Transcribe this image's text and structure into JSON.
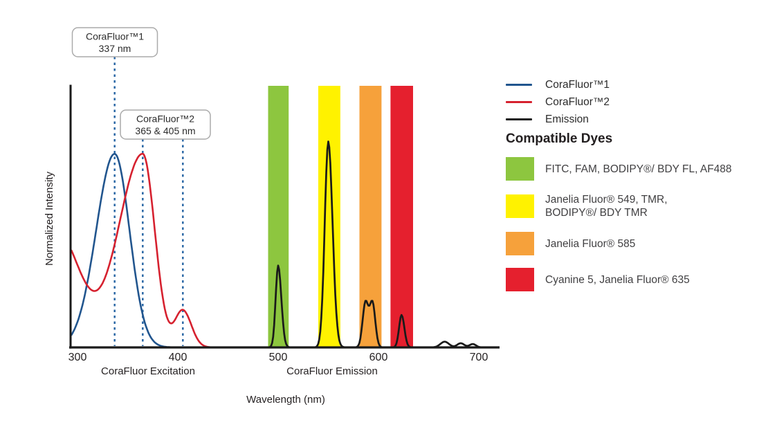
{
  "chart": {
    "y_axis_label": "Normalized Intensity",
    "x_axis_label": "Wavelength (nm)",
    "region_labels": {
      "excitation": "CoraFluor Excitation",
      "emission": "CoraFluor Emission"
    },
    "callouts": [
      {
        "title": "CoraFluor™1",
        "subtitle": "337 nm",
        "marker_nm": [
          337
        ]
      },
      {
        "title": "CoraFluor™2",
        "subtitle": "365 & 405 nm",
        "marker_nm": [
          365,
          405
        ]
      }
    ],
    "marker_line_color": "#2a67a5"
  },
  "chart_data": {
    "type": "line",
    "title": "",
    "xlabel": "Wavelength (nm)",
    "ylabel": "Normalized Intensity",
    "xlim": [
      300,
      715
    ],
    "x_ticks": [
      300,
      400,
      500,
      600,
      700
    ],
    "y_unit": "fraction of plot height (no y-axis ticks shown; intensities normalized)",
    "grid": false,
    "series": [
      {
        "name": "CoraFluor™1",
        "color": "#21558e",
        "role": "excitation",
        "peaks_nm": [
          337
        ],
        "range_nm": [
          294,
          412
        ],
        "components": [
          {
            "a": 0.74,
            "c": 337,
            "sl": 26,
            "sr": 21
          }
        ]
      },
      {
        "name": "CoraFluor™2",
        "color": "#d6212f",
        "role": "excitation",
        "peaks_nm": [
          365,
          405
        ],
        "range_nm": [
          294,
          457
        ],
        "components": [
          {
            "a": 0.437,
            "c": 280,
            "sl": 32,
            "sr": 32
          },
          {
            "a": 0.74,
            "c": 365,
            "sl": 34,
            "sr": 17
          },
          {
            "a": 0.141,
            "c": 405,
            "sl": 11,
            "sr": 12
          }
        ]
      },
      {
        "name": "Emission",
        "color": "#1a1a1a",
        "role": "emission",
        "peaks_nm": [
          500,
          550,
          590,
          623,
          666,
          682,
          694
        ],
        "range_nm": [
          483,
          717
        ],
        "components": [
          {
            "a": 0.313,
            "c": 500,
            "sl": 3.5,
            "sr": 4.5
          },
          {
            "a": 0.787,
            "c": 550,
            "sl": 5,
            "sr": 6
          },
          {
            "a": 0.17,
            "c": 587,
            "sl": 4,
            "sr": 4
          },
          {
            "a": 0.17,
            "c": 594,
            "sl": 4,
            "sr": 4
          },
          {
            "a": 0.124,
            "c": 623,
            "sl": 3.5,
            "sr": 4
          },
          {
            "a": 0.022,
            "c": 666,
            "sl": 6,
            "sr": 6
          },
          {
            "a": 0.016,
            "c": 682,
            "sl": 5,
            "sr": 5
          },
          {
            "a": 0.013,
            "c": 694,
            "sl": 4.5,
            "sr": 4.5
          }
        ]
      }
    ],
    "bands": [
      {
        "nm": [
          490,
          510.5
        ],
        "color": "#8dc63f",
        "dyes": "FITC, FAM, BODIPY®/ BDY FL, AF488"
      },
      {
        "nm": [
          540,
          562
        ],
        "color": "#fff200",
        "dyes": "Janelia Fluor® 549, TMR, BODIPY®/ BDY TMR"
      },
      {
        "nm": [
          581,
          603
        ],
        "color": "#f6a13b",
        "dyes": "Janelia Fluor® 585"
      },
      {
        "nm": [
          612,
          634.5
        ],
        "color": "#e5202e",
        "dyes": "Cyanine 5, Janelia Fluor® 635"
      }
    ]
  },
  "legend": {
    "items": [
      {
        "label": "CoraFluor™1",
        "color": "#21558e"
      },
      {
        "label": "CoraFluor™2",
        "color": "#d6212f"
      },
      {
        "label": "Emission",
        "color": "#1a1a1a"
      }
    ]
  },
  "dyes": {
    "heading": "Compatible Dyes",
    "items": [
      {
        "color": "#8dc63f",
        "label": "FITC, FAM, BODIPY®/ BDY FL, AF488"
      },
      {
        "color": "#fff200",
        "label": "Janelia Fluor® 549, TMR,\nBODIPY®/ BDY TMR"
      },
      {
        "color": "#f6a13b",
        "label": "Janelia Fluor® 585"
      },
      {
        "color": "#e5202e",
        "label": "Cyanine 5, Janelia Fluor® 635"
      }
    ]
  }
}
